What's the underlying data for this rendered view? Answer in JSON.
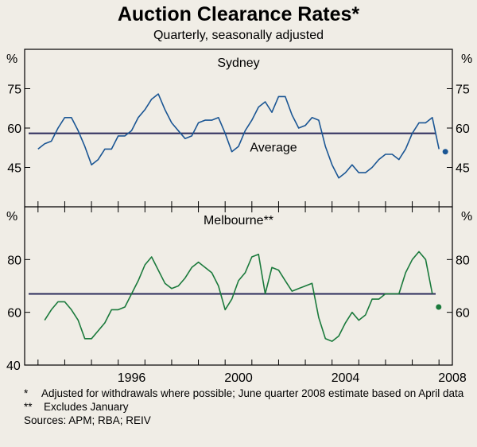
{
  "title": "Auction Clearance Rates*",
  "subtitle": "Quarterly, seasonally adjusted",
  "colors": {
    "sydney": "#1b5694",
    "melbourne": "#1b7a3c",
    "average": "#2a2a5a",
    "frame": "#000000",
    "background": "#f0ede6"
  },
  "chart_data": [
    {
      "type": "line",
      "panel": "Sydney",
      "title": "Sydney",
      "ylabel_left": "%",
      "ylabel_right": "%",
      "ylim": [
        30,
        90
      ],
      "yticks": [
        45,
        60,
        75
      ],
      "x_start": 1993.0,
      "x_step": 0.25,
      "values": [
        52,
        54,
        55,
        60,
        64,
        64,
        59,
        53,
        46,
        48,
        52,
        52,
        57,
        57,
        59,
        64,
        67,
        71,
        73,
        67,
        62,
        59,
        56,
        57,
        62,
        63,
        63,
        64,
        58,
        51,
        53,
        59,
        63,
        68,
        70,
        66,
        72,
        72,
        65,
        60,
        61,
        64,
        63,
        53,
        46,
        41,
        43,
        46,
        43,
        43,
        45,
        48,
        50,
        50,
        48,
        52,
        58,
        62,
        62,
        64,
        52
      ],
      "series_name": "Sydney",
      "average_label": "Average",
      "average_value": 58,
      "estimate_value": 51
    },
    {
      "type": "line",
      "panel": "Melbourne",
      "title": "Melbourne**",
      "ylabel_left": "%",
      "ylabel_right": "%",
      "ylim": [
        40,
        100
      ],
      "yticks": [
        60,
        80
      ],
      "x_start": 1993.25,
      "x_step": 0.25,
      "values": [
        57,
        61,
        64,
        64,
        61,
        57,
        50,
        50,
        53,
        56,
        61,
        61,
        62,
        67,
        72,
        78,
        81,
        76,
        71,
        69,
        70,
        73,
        77,
        79,
        77,
        75,
        70,
        61,
        65,
        72,
        75,
        81,
        82,
        67,
        77,
        76,
        72,
        68,
        69,
        70,
        71,
        58,
        50,
        49,
        51,
        56,
        60,
        57,
        59,
        65,
        65,
        67,
        67,
        67,
        75,
        80,
        83,
        80,
        67
      ],
      "series_name": "Melbourne",
      "average_value": 67,
      "estimate_value": 62
    }
  ],
  "x_axis": {
    "ticks": [
      "1996",
      "2000",
      "2004",
      "2008"
    ],
    "tick_years": [
      1996,
      2000,
      2004,
      2008
    ],
    "xlim": [
      1992.5,
      2008.5
    ],
    "bottom_label": "40"
  },
  "notes": [
    {
      "mark": "*",
      "text": "Adjusted for withdrawals where possible; June quarter 2008 estimate based on April data"
    },
    {
      "mark": "**",
      "text": "Excludes January"
    }
  ],
  "sources": "Sources: APM; RBA; REIV"
}
